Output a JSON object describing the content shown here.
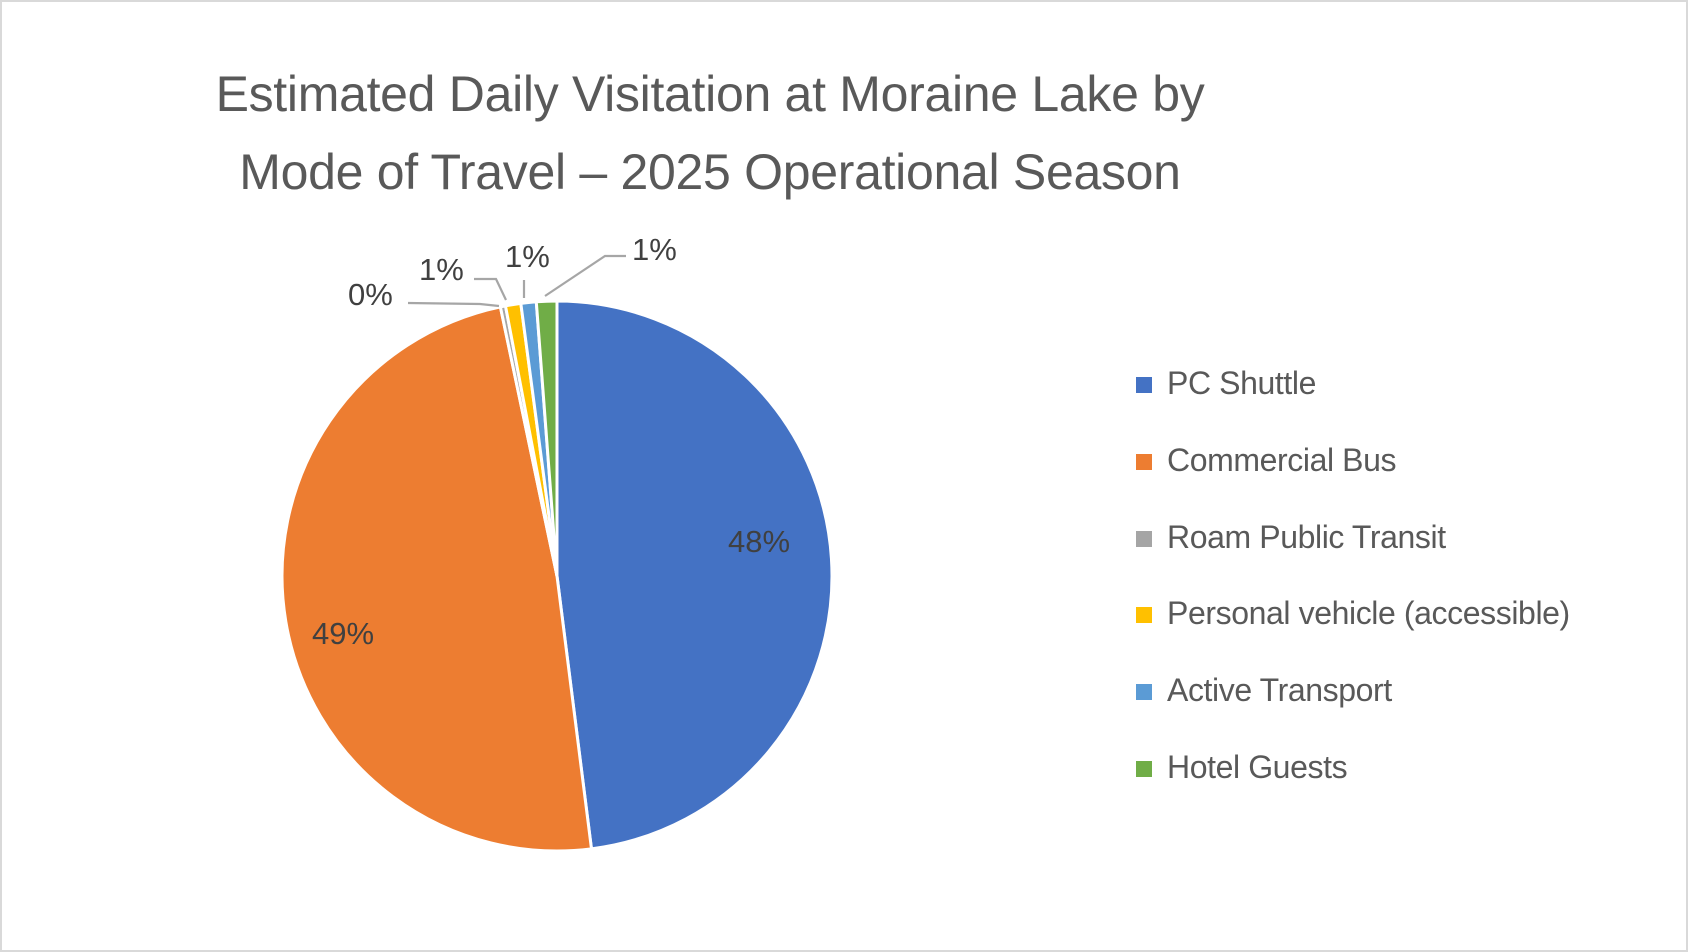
{
  "title": {
    "line1": "Estimated Daily Visitation at Moraine Lake by",
    "line2": "Mode of Travel – 2025 Operational Season"
  },
  "colors": {
    "pc_shuttle": "#4472C4",
    "commercial_bus": "#ED7D31",
    "roam_public_transit": "#A5A5A5",
    "personal_vehicle": "#FFC000",
    "active_transport": "#5B9BD5",
    "hotel_guests": "#70AD47",
    "title_text": "#595959",
    "label_text": "#404040",
    "leader_line": "#A6A6A6",
    "frame_border": "#D9D9D9"
  },
  "legend": {
    "items": [
      {
        "label": "PC Shuttle",
        "color": "#4472C4"
      },
      {
        "label": "Commercial Bus",
        "color": "#ED7D31"
      },
      {
        "label": "Roam Public Transit",
        "color": "#A5A5A5"
      },
      {
        "label": "Personal vehicle (accessible)",
        "color": "#FFC000"
      },
      {
        "label": "Active Transport",
        "color": "#5B9BD5"
      },
      {
        "label": "Hotel Guests",
        "color": "#70AD47"
      }
    ]
  },
  "labels": {
    "pc_shuttle": "48%",
    "commercial_bus": "49%",
    "roam_public_transit": "0%",
    "personal_vehicle": "1%",
    "active_transport": "1%",
    "hotel_guests": "1%"
  },
  "chart_data": {
    "type": "pie",
    "title": "Estimated Daily Visitation at Moraine Lake by Mode of Travel – 2025 Operational Season",
    "categories": [
      "PC Shuttle",
      "Commercial Bus",
      "Roam Public Transit",
      "Personal vehicle (accessible)",
      "Active Transport",
      "Hotel Guests"
    ],
    "values": [
      48.0,
      48.7,
      0.3,
      0.9,
      0.9,
      1.2
    ],
    "data_labels": [
      "48%",
      "49%",
      "0%",
      "1%",
      "1%",
      "1%"
    ],
    "colors": [
      "#4472C4",
      "#ED7D31",
      "#A5A5A5",
      "#FFC000",
      "#5B9BD5",
      "#70AD47"
    ],
    "start_angle_deg": 0,
    "direction": "clockwise",
    "legend_position": "right",
    "units": "percent of estimated daily visitors"
  }
}
